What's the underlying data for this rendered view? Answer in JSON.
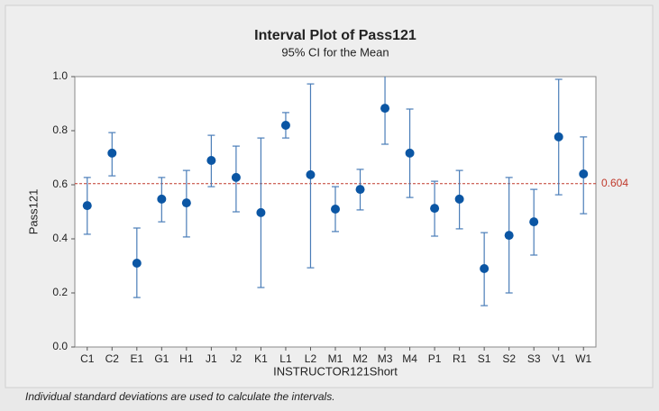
{
  "chart_data": {
    "type": "interval",
    "title": "Interval Plot of Pass121",
    "subtitle": "95% CI for the Mean",
    "x_label": "INSTRUCTOR121Short",
    "y_label": "Pass121",
    "footnote": "Individual standard deviations are used to calculate the intervals.",
    "categories": [
      "C1",
      "C2",
      "E1",
      "G1",
      "H1",
      "J1",
      "J2",
      "K1",
      "L1",
      "L2",
      "M1",
      "M2",
      "M3",
      "M4",
      "P1",
      "R1",
      "S1",
      "S2",
      "S3",
      "V1",
      "W1"
    ],
    "values": [
      0.523,
      0.717,
      0.31,
      0.547,
      0.533,
      0.69,
      0.627,
      0.497,
      0.82,
      0.637,
      0.51,
      0.583,
      0.883,
      0.717,
      0.513,
      0.547,
      0.29,
      0.413,
      0.463,
      0.777,
      0.64
    ],
    "lower": [
      0.417,
      0.633,
      0.183,
      0.463,
      0.407,
      0.593,
      0.5,
      0.22,
      0.773,
      0.293,
      0.427,
      0.507,
      0.75,
      0.553,
      0.41,
      0.437,
      0.153,
      0.2,
      0.34,
      0.563,
      0.493
    ],
    "upper": [
      0.627,
      0.793,
      0.44,
      0.627,
      0.653,
      0.783,
      0.743,
      0.773,
      0.867,
      0.973,
      0.593,
      0.657,
      1.017,
      0.88,
      0.613,
      0.653,
      0.423,
      0.627,
      0.583,
      0.99,
      0.777
    ],
    "color": "#0b56a4",
    "bar_color": "#4a7db8",
    "reference_line": 0.604,
    "reference_color": "#c0392b",
    "ylim": [
      0,
      1
    ],
    "yticks": [
      {
        "value": 0,
        "label": "0.0"
      },
      {
        "value": 0.2,
        "label": "0.2"
      },
      {
        "value": 0.4,
        "label": "0.4"
      },
      {
        "value": 0.6,
        "label": "0.6"
      },
      {
        "value": 0.8,
        "label": "0.8"
      },
      {
        "value": 1,
        "label": "1.0"
      }
    ],
    "grid": false
  }
}
